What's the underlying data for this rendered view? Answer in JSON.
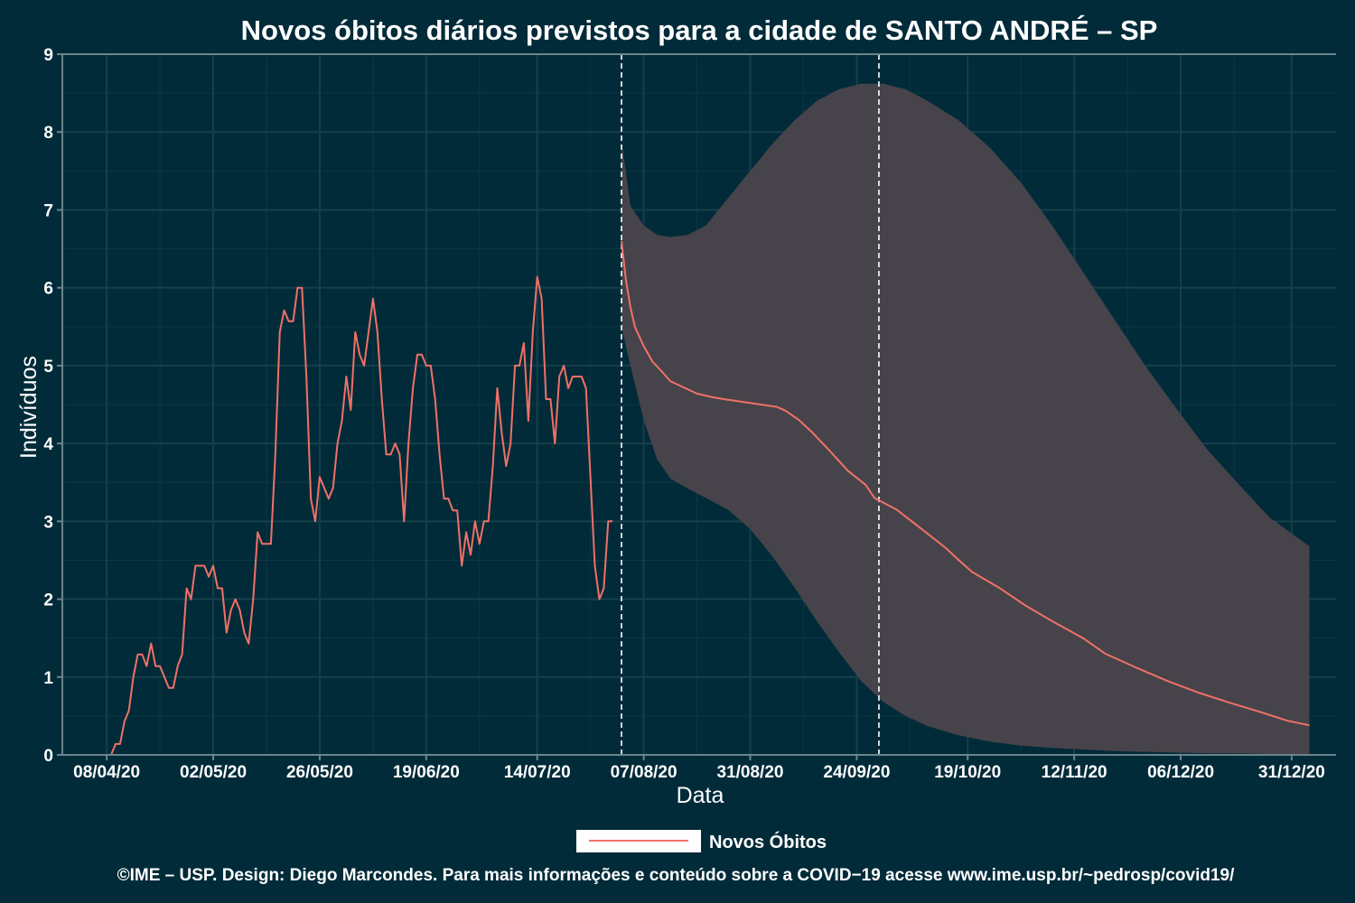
{
  "chart_data": {
    "type": "line",
    "title": "Novos óbitos diários previstos para a cidade de SANTO ANDRÉ – SP",
    "xlabel": "Data",
    "ylabel": "Indivíduos",
    "ylim": [
      0,
      9
    ],
    "yticks": [
      "0",
      "1",
      "2",
      "3",
      "4",
      "5",
      "6",
      "7",
      "8",
      "9"
    ],
    "xlim": [
      "2020-03-29",
      "2021-01-10"
    ],
    "xticks": [
      {
        "date": "2020-04-08",
        "label": "08/04/20"
      },
      {
        "date": "2020-05-02",
        "label": "02/05/20"
      },
      {
        "date": "2020-05-26",
        "label": "26/05/20"
      },
      {
        "date": "2020-06-19",
        "label": "19/06/20"
      },
      {
        "date": "2020-07-14",
        "label": "14/07/20"
      },
      {
        "date": "2020-08-07",
        "label": "07/08/20"
      },
      {
        "date": "2020-08-31",
        "label": "31/08/20"
      },
      {
        "date": "2020-09-24",
        "label": "24/09/20"
      },
      {
        "date": "2020-10-19",
        "label": "19/10/20"
      },
      {
        "date": "2020-11-12",
        "label": "12/11/20"
      },
      {
        "date": "2020-12-06",
        "label": "06/12/20"
      },
      {
        "date": "2020-12-31",
        "label": "31/12/20"
      }
    ],
    "vlines": [
      "2020-08-02",
      "2020-09-29"
    ],
    "grid": true,
    "legend": {
      "position": "bottom",
      "entries": [
        "Novos Óbitos"
      ]
    },
    "series": [
      {
        "name": "Novos Óbitos",
        "color": "#f07167",
        "points": [
          [
            "2020-04-08",
            0
          ],
          [
            "2020-04-09",
            0
          ],
          [
            "2020-04-10",
            0.14
          ],
          [
            "2020-04-11",
            0.14
          ],
          [
            "2020-04-12",
            0.43
          ],
          [
            "2020-04-13",
            0.57
          ],
          [
            "2020-04-14",
            1.0
          ],
          [
            "2020-04-15",
            1.29
          ],
          [
            "2020-04-16",
            1.29
          ],
          [
            "2020-04-17",
            1.14
          ],
          [
            "2020-04-18",
            1.43
          ],
          [
            "2020-04-19",
            1.14
          ],
          [
            "2020-04-20",
            1.14
          ],
          [
            "2020-04-21",
            1.0
          ],
          [
            "2020-04-22",
            0.86
          ],
          [
            "2020-04-23",
            0.86
          ],
          [
            "2020-04-24",
            1.14
          ],
          [
            "2020-04-25",
            1.29
          ],
          [
            "2020-04-26",
            2.14
          ],
          [
            "2020-04-27",
            2.0
          ],
          [
            "2020-04-28",
            2.43
          ],
          [
            "2020-04-29",
            2.43
          ],
          [
            "2020-04-30",
            2.43
          ],
          [
            "2020-05-01",
            2.29
          ],
          [
            "2020-05-02",
            2.43
          ],
          [
            "2020-05-03",
            2.14
          ],
          [
            "2020-05-04",
            2.14
          ],
          [
            "2020-05-05",
            1.57
          ],
          [
            "2020-05-06",
            1.86
          ],
          [
            "2020-05-07",
            2.0
          ],
          [
            "2020-05-08",
            1.86
          ],
          [
            "2020-05-09",
            1.57
          ],
          [
            "2020-05-10",
            1.43
          ],
          [
            "2020-05-11",
            2.0
          ],
          [
            "2020-05-12",
            2.86
          ],
          [
            "2020-05-13",
            2.71
          ],
          [
            "2020-05-14",
            2.71
          ],
          [
            "2020-05-15",
            2.71
          ],
          [
            "2020-05-16",
            3.86
          ],
          [
            "2020-05-17",
            5.43
          ],
          [
            "2020-05-18",
            5.71
          ],
          [
            "2020-05-19",
            5.57
          ],
          [
            "2020-05-20",
            5.57
          ],
          [
            "2020-05-21",
            6.0
          ],
          [
            "2020-05-22",
            6.0
          ],
          [
            "2020-05-23",
            4.86
          ],
          [
            "2020-05-24",
            3.29
          ],
          [
            "2020-05-25",
            3.0
          ],
          [
            "2020-05-26",
            3.57
          ],
          [
            "2020-05-27",
            3.43
          ],
          [
            "2020-05-28",
            3.29
          ],
          [
            "2020-05-29",
            3.43
          ],
          [
            "2020-05-30",
            4.0
          ],
          [
            "2020-05-31",
            4.29
          ],
          [
            "2020-06-01",
            4.86
          ],
          [
            "2020-06-02",
            4.43
          ],
          [
            "2020-06-03",
            5.43
          ],
          [
            "2020-06-04",
            5.14
          ],
          [
            "2020-06-05",
            5.0
          ],
          [
            "2020-06-06",
            5.43
          ],
          [
            "2020-06-07",
            5.86
          ],
          [
            "2020-06-08",
            5.43
          ],
          [
            "2020-06-09",
            4.57
          ],
          [
            "2020-06-10",
            3.86
          ],
          [
            "2020-06-11",
            3.86
          ],
          [
            "2020-06-12",
            4.0
          ],
          [
            "2020-06-13",
            3.86
          ],
          [
            "2020-06-14",
            3.0
          ],
          [
            "2020-06-15",
            4.0
          ],
          [
            "2020-06-16",
            4.71
          ],
          [
            "2020-06-17",
            5.14
          ],
          [
            "2020-06-18",
            5.14
          ],
          [
            "2020-06-19",
            5.0
          ],
          [
            "2020-06-20",
            5.0
          ],
          [
            "2020-06-21",
            4.57
          ],
          [
            "2020-06-22",
            3.86
          ],
          [
            "2020-06-23",
            3.29
          ],
          [
            "2020-06-24",
            3.29
          ],
          [
            "2020-06-25",
            3.14
          ],
          [
            "2020-06-26",
            3.14
          ],
          [
            "2020-06-27",
            2.43
          ],
          [
            "2020-06-28",
            2.86
          ],
          [
            "2020-06-29",
            2.57
          ],
          [
            "2020-06-30",
            3.0
          ],
          [
            "2020-07-01",
            2.71
          ],
          [
            "2020-07-02",
            3.0
          ],
          [
            "2020-07-03",
            3.0
          ],
          [
            "2020-07-04",
            3.71
          ],
          [
            "2020-07-05",
            4.71
          ],
          [
            "2020-07-06",
            4.14
          ],
          [
            "2020-07-07",
            3.71
          ],
          [
            "2020-07-08",
            4.0
          ],
          [
            "2020-07-09",
            5.0
          ],
          [
            "2020-07-10",
            5.0
          ],
          [
            "2020-07-11",
            5.29
          ],
          [
            "2020-07-12",
            4.29
          ],
          [
            "2020-07-13",
            5.43
          ],
          [
            "2020-07-14",
            6.14
          ],
          [
            "2020-07-15",
            5.86
          ],
          [
            "2020-07-16",
            4.57
          ],
          [
            "2020-07-17",
            4.57
          ],
          [
            "2020-07-18",
            4.0
          ],
          [
            "2020-07-19",
            4.86
          ],
          [
            "2020-07-20",
            5.0
          ],
          [
            "2020-07-21",
            4.71
          ],
          [
            "2020-07-22",
            4.86
          ],
          [
            "2020-07-23",
            4.86
          ],
          [
            "2020-07-24",
            4.86
          ],
          [
            "2020-07-25",
            4.71
          ],
          [
            "2020-07-26",
            3.57
          ],
          [
            "2020-07-27",
            2.43
          ],
          [
            "2020-07-28",
            2.0
          ],
          [
            "2020-07-29",
            2.14
          ],
          [
            "2020-07-30",
            3.0
          ],
          [
            "2020-07-31",
            3.0
          ]
        ]
      },
      {
        "name": "Novos Óbitos",
        "color": "#f07167",
        "points": [
          [
            "2020-08-02",
            6.6
          ],
          [
            "2020-08-03",
            6.1
          ],
          [
            "2020-08-04",
            5.75
          ],
          [
            "2020-08-05",
            5.5
          ],
          [
            "2020-08-07",
            5.25
          ],
          [
            "2020-08-09",
            5.05
          ],
          [
            "2020-08-11",
            4.93
          ],
          [
            "2020-08-13",
            4.8
          ],
          [
            "2020-08-16",
            4.72
          ],
          [
            "2020-08-19",
            4.64
          ],
          [
            "2020-08-22",
            4.6
          ],
          [
            "2020-08-25",
            4.57
          ],
          [
            "2020-08-31",
            4.52
          ],
          [
            "2020-09-06",
            4.47
          ],
          [
            "2020-09-08",
            4.42
          ],
          [
            "2020-09-11",
            4.3
          ],
          [
            "2020-09-14",
            4.14
          ],
          [
            "2020-09-18",
            3.9
          ],
          [
            "2020-09-22",
            3.65
          ],
          [
            "2020-09-26",
            3.47
          ],
          [
            "2020-09-28",
            3.3
          ],
          [
            "2020-10-03",
            3.15
          ],
          [
            "2020-10-08",
            2.93
          ],
          [
            "2020-10-14",
            2.66
          ],
          [
            "2020-10-17",
            2.5
          ],
          [
            "2020-10-20",
            2.35
          ],
          [
            "2020-10-26",
            2.15
          ],
          [
            "2020-11-01",
            1.92
          ],
          [
            "2020-11-07",
            1.72
          ],
          [
            "2020-11-14",
            1.5
          ],
          [
            "2020-11-19",
            1.3
          ],
          [
            "2020-11-26",
            1.12
          ],
          [
            "2020-12-03",
            0.95
          ],
          [
            "2020-12-10",
            0.8
          ],
          [
            "2020-12-17",
            0.67
          ],
          [
            "2020-12-24",
            0.55
          ],
          [
            "2020-12-30",
            0.44
          ],
          [
            "2021-01-04",
            0.38
          ]
        ]
      }
    ],
    "band": {
      "color": "#47434a",
      "points": [
        [
          "2020-08-02",
          5.5,
          7.9
        ],
        [
          "2020-08-04",
          5.0,
          7.05
        ],
        [
          "2020-08-07",
          4.3,
          6.8
        ],
        [
          "2020-08-10",
          3.8,
          6.68
        ],
        [
          "2020-08-13",
          3.55,
          6.65
        ],
        [
          "2020-08-17",
          3.42,
          6.68
        ],
        [
          "2020-08-21",
          3.3,
          6.8
        ],
        [
          "2020-08-26",
          3.15,
          7.15
        ],
        [
          "2020-08-31",
          2.9,
          7.5
        ],
        [
          "2020-09-05",
          2.55,
          7.85
        ],
        [
          "2020-09-10",
          2.15,
          8.15
        ],
        [
          "2020-09-15",
          1.72,
          8.4
        ],
        [
          "2020-09-20",
          1.32,
          8.55
        ],
        [
          "2020-09-25",
          0.95,
          8.62
        ],
        [
          "2020-09-30",
          0.68,
          8.62
        ],
        [
          "2020-10-05",
          0.5,
          8.55
        ],
        [
          "2020-10-10",
          0.37,
          8.4
        ],
        [
          "2020-10-17",
          0.25,
          8.15
        ],
        [
          "2020-10-24",
          0.17,
          7.8
        ],
        [
          "2020-10-31",
          0.12,
          7.35
        ],
        [
          "2020-11-07",
          0.09,
          6.8
        ],
        [
          "2020-11-14",
          0.07,
          6.2
        ],
        [
          "2020-11-21",
          0.05,
          5.6
        ],
        [
          "2020-11-28",
          0.04,
          5.0
        ],
        [
          "2020-12-05",
          0.03,
          4.45
        ],
        [
          "2020-12-12",
          0.02,
          3.92
        ],
        [
          "2020-12-19",
          0.02,
          3.48
        ],
        [
          "2020-12-26",
          0.01,
          3.05
        ],
        [
          "2021-01-04",
          0.01,
          2.68
        ]
      ]
    }
  },
  "legend_label": "Novos Óbitos",
  "caption": "©IME – USP. Design: Diego Marcondes. Para mais informações e conteúdo sobre a COVID−19 acesse www.ime.usp.br/~pedrosp/covid19/"
}
